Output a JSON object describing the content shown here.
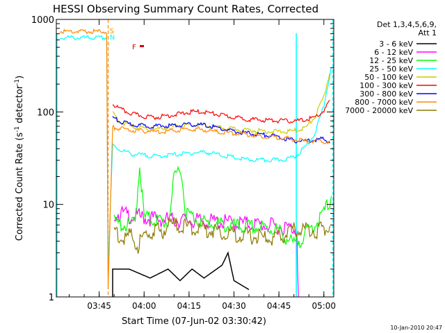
{
  "chart_data": {
    "type": "line",
    "title": "HESSI Observing Summary Count Rates, Corrected",
    "xlabel": "Start Time (07-Jun-02 03:30:42)",
    "ylabel_main": "Corrected Count Rate (s",
    "ylabel_sup1": "-1",
    "ylabel_mid": " detector",
    "ylabel_sup2": "-1",
    "ylabel_end": ")",
    "y_scale": "log",
    "ylim": [
      1,
      1000
    ],
    "xlim_minutes": [
      30.7,
      99.8
    ],
    "x_ticks": [
      {
        "m": 45,
        "label": "03:45"
      },
      {
        "m": 60,
        "label": "04:00"
      },
      {
        "m": 75,
        "label": "04:15"
      },
      {
        "m": 90,
        "label": "04:30"
      },
      {
        "m": 105,
        "label": "04:45"
      },
      {
        "m": 120,
        "label": "05:00"
      }
    ],
    "y_ticks": [
      {
        "v": 1,
        "label": "1"
      },
      {
        "v": 10,
        "label": "10"
      },
      {
        "v": 100,
        "label": "100"
      },
      {
        "v": 1000,
        "label": "1000"
      }
    ],
    "legend_header": [
      "Det 1,3,4,5,6,9,",
      "Att 1"
    ],
    "legend_position": "right",
    "series": [
      {
        "name": "3 - 6 keV",
        "color": "#000000",
        "points": [
          [
            49.5,
            1
          ],
          [
            49.5,
            2
          ],
          [
            55,
            2
          ],
          [
            62,
            1.6
          ],
          [
            68,
            2
          ],
          [
            72,
            1.5
          ],
          [
            76,
            2
          ],
          [
            80,
            1.6
          ],
          [
            86,
            2.2
          ],
          [
            88,
            3
          ],
          [
            90,
            1.5
          ],
          [
            95,
            1.2
          ]
        ]
      },
      {
        "name": "6 - 12 keV",
        "color": "#ff00ff",
        "points": [
          [
            50,
            9
          ],
          [
            56,
            8.3
          ],
          [
            60,
            8
          ],
          [
            66,
            7.6
          ],
          [
            72,
            7.5
          ],
          [
            78,
            7.3
          ],
          [
            84,
            7.2
          ],
          [
            90,
            7
          ],
          [
            96,
            6.8
          ],
          [
            102,
            6.5
          ],
          [
            108,
            6.2
          ],
          [
            111,
            6
          ],
          [
            111.5,
            1
          ]
        ]
      },
      {
        "name": "12 - 25 keV",
        "color": "#00ff00",
        "points": [
          [
            50,
            7
          ],
          [
            55,
            6.5
          ],
          [
            57,
            7
          ],
          [
            58.5,
            30
          ],
          [
            60,
            8
          ],
          [
            64,
            7.5
          ],
          [
            68,
            7
          ],
          [
            70,
            20
          ],
          [
            72,
            30
          ],
          [
            74,
            9
          ],
          [
            80,
            7
          ],
          [
            86,
            6.6
          ],
          [
            92,
            6.3
          ],
          [
            98,
            6.2
          ],
          [
            104,
            6
          ],
          [
            107,
            5
          ],
          [
            110,
            4
          ],
          [
            113,
            5
          ],
          [
            116,
            6.3
          ],
          [
            119,
            8
          ],
          [
            122,
            12
          ],
          [
            122.5,
            14
          ]
        ]
      },
      {
        "name": "25 - 50 keV",
        "color": "#00ffff",
        "points": [
          [
            32,
            650
          ],
          [
            47.5,
            650
          ],
          [
            48,
            2
          ],
          [
            49.5,
            45
          ],
          [
            52,
            40
          ],
          [
            56,
            36
          ],
          [
            60,
            35
          ],
          [
            64,
            34
          ],
          [
            68,
            35
          ],
          [
            72,
            36
          ],
          [
            76,
            37
          ],
          [
            80,
            38
          ],
          [
            84,
            36
          ],
          [
            88,
            34
          ],
          [
            92,
            32
          ],
          [
            96,
            31
          ],
          [
            100,
            31
          ],
          [
            104,
            31
          ],
          [
            108,
            32
          ],
          [
            111,
            35
          ],
          [
            114,
            44
          ],
          [
            117,
            60
          ],
          [
            120,
            120
          ],
          [
            122,
            260
          ],
          [
            122.5,
            300
          ]
        ]
      },
      {
        "name": "50 - 100 keV",
        "color": "#cccc00",
        "points": [
          [
            49.5,
            100
          ],
          [
            52,
            80
          ],
          [
            56,
            72
          ],
          [
            60,
            68
          ],
          [
            64,
            67
          ],
          [
            68,
            70
          ],
          [
            72,
            73
          ],
          [
            76,
            74
          ],
          [
            80,
            73
          ],
          [
            84,
            70
          ],
          [
            88,
            68
          ],
          [
            92,
            66
          ],
          [
            96,
            65
          ],
          [
            100,
            64
          ],
          [
            104,
            63
          ],
          [
            108,
            63
          ],
          [
            111,
            65
          ],
          [
            114,
            70
          ],
          [
            117,
            90
          ],
          [
            120,
            150
          ],
          [
            122,
            280
          ]
        ]
      },
      {
        "name": "100 - 300 keV",
        "color": "#ff0000",
        "points": [
          [
            49.5,
            125
          ],
          [
            52,
            110
          ],
          [
            56,
            98
          ],
          [
            60,
            92
          ],
          [
            64,
            90
          ],
          [
            68,
            94
          ],
          [
            72,
            98
          ],
          [
            76,
            103
          ],
          [
            80,
            103
          ],
          [
            84,
            97
          ],
          [
            88,
            92
          ],
          [
            92,
            88
          ],
          [
            96,
            85
          ],
          [
            100,
            84
          ],
          [
            104,
            83
          ],
          [
            108,
            82
          ],
          [
            111,
            82
          ],
          [
            114,
            85
          ],
          [
            117,
            90
          ],
          [
            120,
            105
          ],
          [
            122,
            135
          ]
        ]
      },
      {
        "name": "300 - 800 keV",
        "color": "#0000ff",
        "points": [
          [
            49.5,
            90
          ],
          [
            52,
            80
          ],
          [
            56,
            75
          ],
          [
            60,
            73
          ],
          [
            64,
            72
          ],
          [
            68,
            73
          ],
          [
            72,
            74
          ],
          [
            76,
            75
          ],
          [
            80,
            74
          ],
          [
            84,
            70
          ],
          [
            88,
            65
          ],
          [
            92,
            62
          ],
          [
            96,
            60
          ],
          [
            100,
            58
          ],
          [
            104,
            56
          ],
          [
            108,
            52
          ],
          [
            111,
            50
          ],
          [
            114,
            50
          ],
          [
            117,
            52
          ],
          [
            120,
            52
          ],
          [
            122,
            50
          ]
        ]
      },
      {
        "name": "800 - 7000 keV",
        "color": "#ff8800",
        "points": [
          [
            32,
            760
          ],
          [
            47.5,
            760
          ],
          [
            48,
            1.2
          ],
          [
            49.5,
            70
          ],
          [
            52,
            68
          ],
          [
            56,
            65
          ],
          [
            60,
            64
          ],
          [
            64,
            63
          ],
          [
            68,
            64
          ],
          [
            72,
            66
          ],
          [
            76,
            67
          ],
          [
            80,
            66
          ],
          [
            84,
            63
          ],
          [
            88,
            61
          ],
          [
            92,
            60
          ],
          [
            96,
            58
          ],
          [
            100,
            56
          ],
          [
            104,
            55
          ],
          [
            108,
            53
          ],
          [
            111,
            51
          ],
          [
            114,
            50
          ],
          [
            117,
            50
          ],
          [
            120,
            49
          ],
          [
            122,
            48
          ]
        ]
      },
      {
        "name": "7000 - 20000 keV",
        "color": "#8b7800",
        "points": [
          [
            50,
            6
          ],
          [
            52,
            5
          ],
          [
            56,
            5
          ],
          [
            58,
            4
          ],
          [
            60,
            5
          ],
          [
            64,
            6
          ],
          [
            66,
            5.5
          ],
          [
            68,
            7
          ],
          [
            72,
            6.5
          ],
          [
            76,
            6.2
          ],
          [
            80,
            6
          ],
          [
            84,
            5.8
          ],
          [
            88,
            5.4
          ],
          [
            92,
            5.2
          ],
          [
            96,
            5
          ],
          [
            100,
            4.8
          ],
          [
            104,
            4.7
          ],
          [
            106,
            5
          ],
          [
            108,
            5.5
          ],
          [
            111,
            6
          ],
          [
            114,
            6
          ],
          [
            118,
            5.8
          ],
          [
            120,
            6
          ],
          [
            122,
            6.5
          ]
        ]
      }
    ],
    "flags": [
      {
        "label": "S",
        "color": "#ff8800",
        "value": 760
      },
      {
        "label": "N",
        "color": "#00ffff",
        "value": 650
      },
      {
        "label": "F",
        "color": "#cc0000",
        "value": 510
      }
    ],
    "footer_date": "10-Jan-2010 20:47"
  }
}
